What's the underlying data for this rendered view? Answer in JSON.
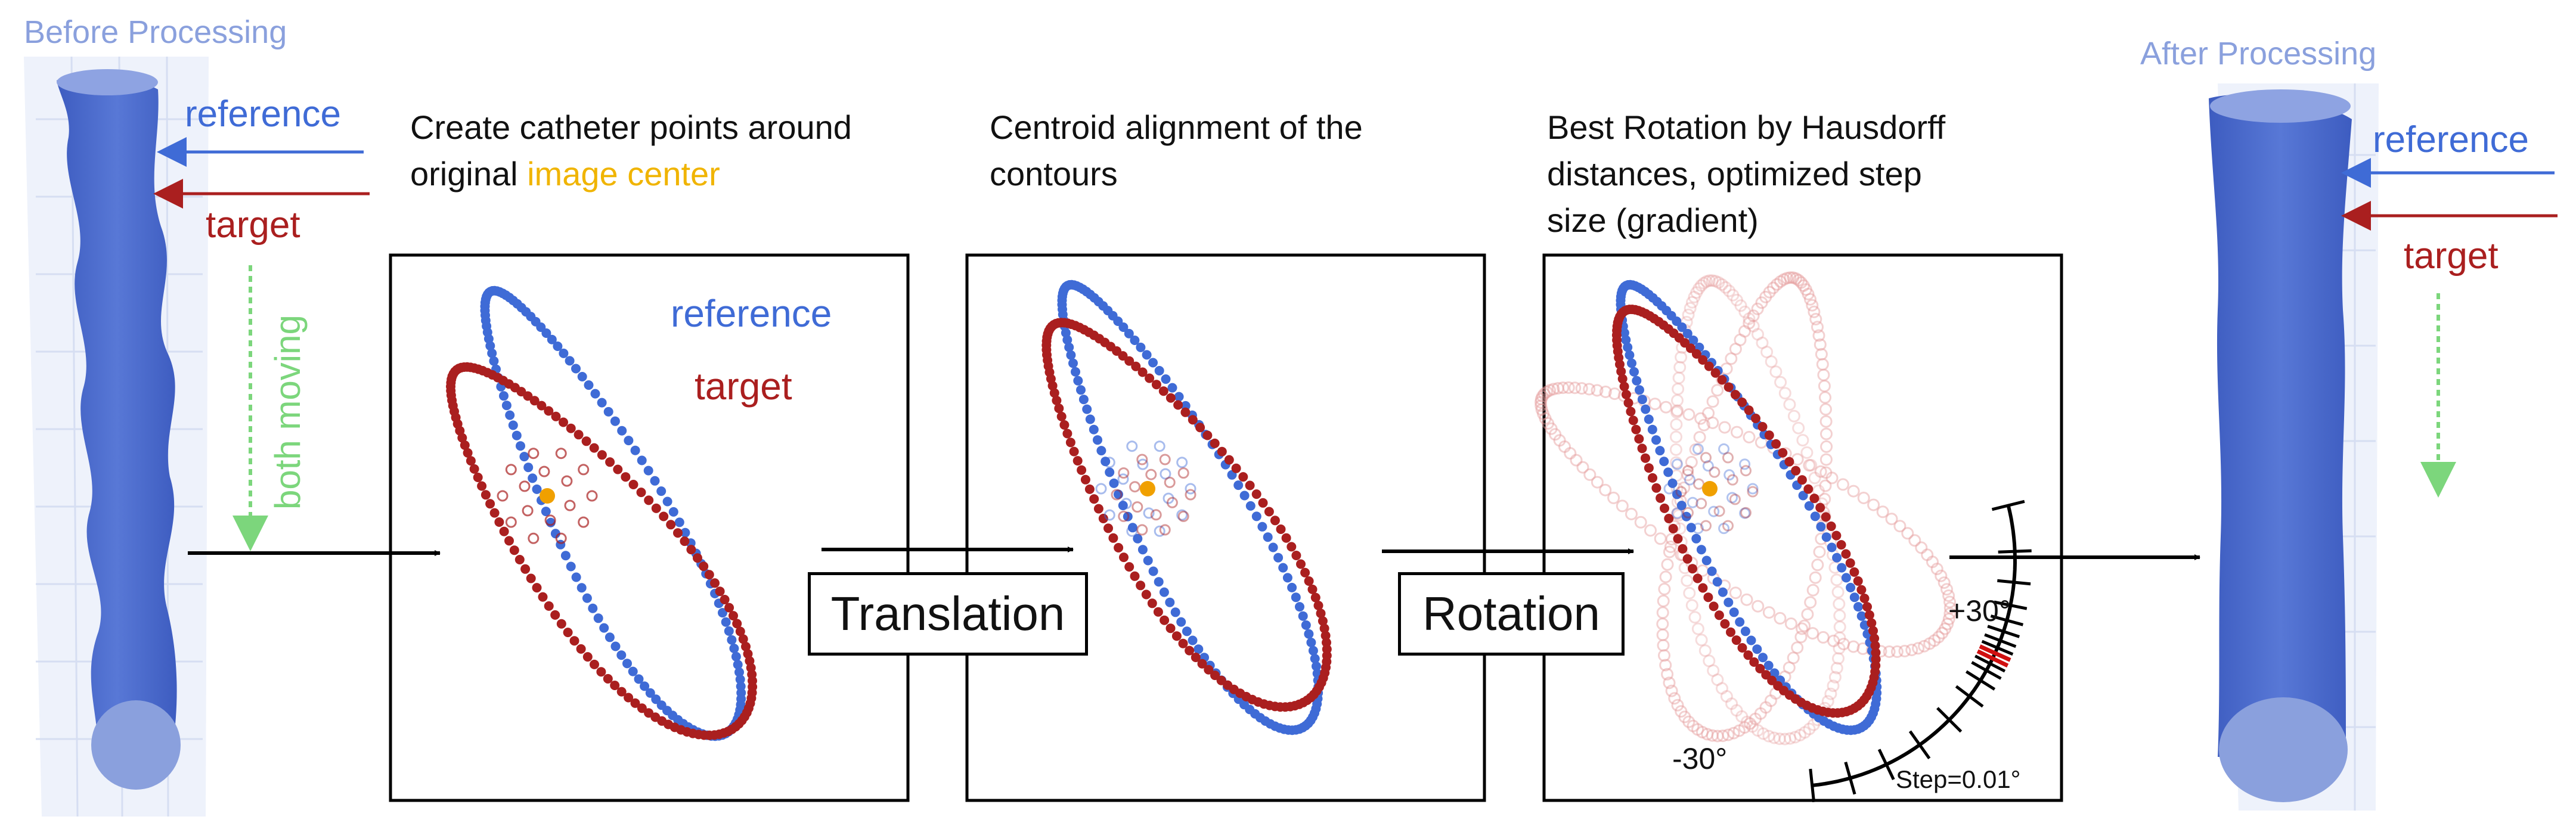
{
  "colors": {
    "reference": "#3f6bd6",
    "target": "#aa1f1f",
    "center": "#f0a000",
    "highlight": "#f0b400",
    "moving": "#7cd67c",
    "vessel": "#4a68c9",
    "vessel_light": "#8aa0dd",
    "grid": "#dfe6f5"
  },
  "left_panel": {
    "title": "Before Processing",
    "reference_label": "reference",
    "target_label": "target",
    "moving_label": "both moving"
  },
  "right_panel": {
    "title": "After Processing",
    "reference_label": "reference",
    "target_label": "target"
  },
  "step1": {
    "caption_line1": "Create catheter points around",
    "caption_line2_prefix": "original ",
    "caption_line2_highlight": "image center",
    "reference_label": "reference",
    "target_label": "target"
  },
  "step2": {
    "caption_line1": "Centroid alignment of the",
    "caption_line2": "contours"
  },
  "step3": {
    "caption_line1": "Best Rotation by Hausdorff",
    "caption_line2": "distances, optimized step",
    "caption_line3": "size (gradient)",
    "plus_label": "+30°",
    "minus_label": "-30°",
    "step_label": "Step=0.01°"
  },
  "operations": {
    "translation": "Translation",
    "rotation": "Rotation"
  }
}
